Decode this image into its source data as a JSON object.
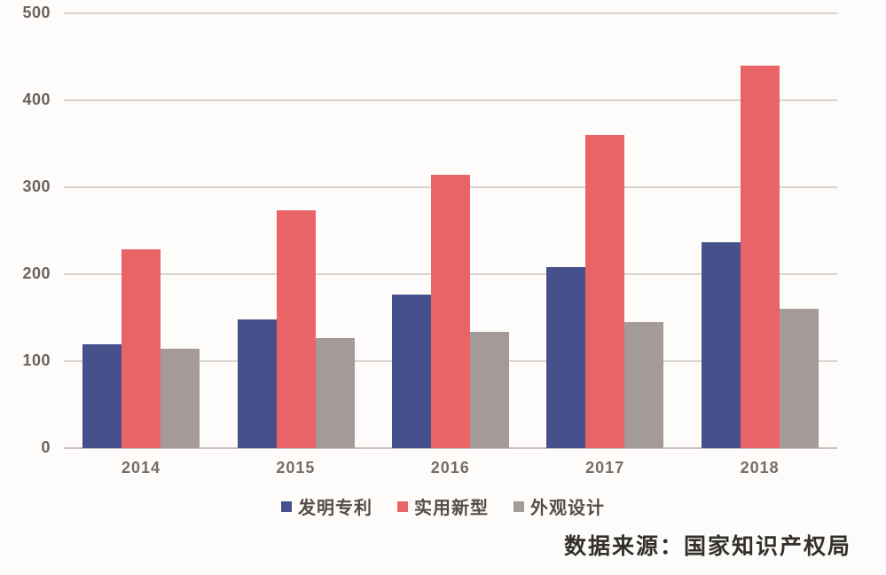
{
  "chart_data": {
    "type": "bar",
    "title": "",
    "xlabel": "",
    "ylabel": "",
    "categories": [
      "2014",
      "2015",
      "2016",
      "2017",
      "2018"
    ],
    "series": [
      {
        "name": "发明专利",
        "key": "invention-patent",
        "color": "#46508a",
        "values": [
          119,
          148,
          177,
          208,
          237
        ]
      },
      {
        "name": "实用新型",
        "key": "utility-model",
        "color": "#e96467",
        "values": [
          229,
          273,
          314,
          360,
          440
        ]
      },
      {
        "name": "外观设计",
        "key": "design-patent",
        "color": "#a49b99",
        "values": [
          114,
          127,
          134,
          145,
          160
        ]
      }
    ],
    "ylim": [
      0,
      500
    ],
    "yticks": [
      0,
      100,
      200,
      300,
      400,
      500
    ],
    "grid": true,
    "legend_position": "bottom"
  },
  "source_note": "数据来源：国家知识产权局"
}
